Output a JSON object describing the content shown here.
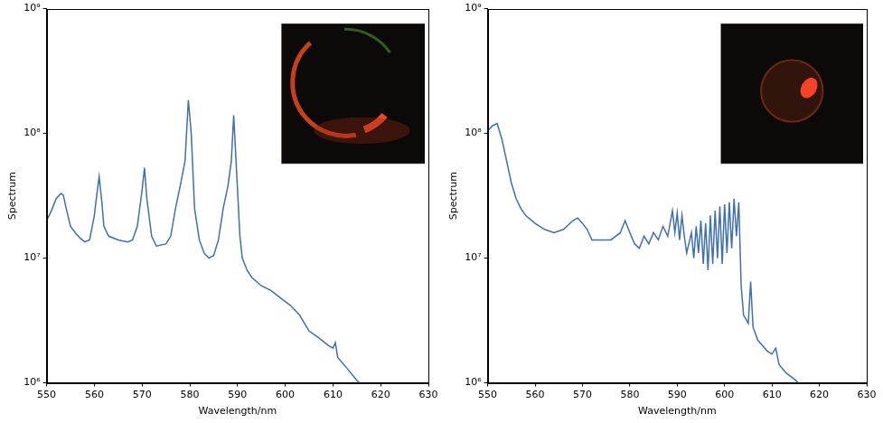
{
  "chart_data": [
    {
      "type": "line",
      "x_label": "Wavelength/nm",
      "y_label": "Spectrum",
      "color": "#3f6fad",
      "log": "y",
      "grid": false,
      "xlim": [
        550,
        630
      ],
      "xticks": [
        550,
        560,
        570,
        580,
        590,
        600,
        610,
        620,
        630
      ],
      "ylim": [
        1000000,
        1000000000
      ],
      "yticks": [
        {
          "value": 1000000,
          "label": "10⁶"
        },
        {
          "value": 10000000,
          "label": "10⁷"
        },
        {
          "value": 100000000,
          "label": "10⁸"
        },
        {
          "value": 1000000000,
          "label": "10⁹"
        }
      ],
      "x": [
        550,
        551,
        552,
        553,
        553.5,
        554,
        555,
        556,
        557,
        558,
        559,
        560,
        560.5,
        561,
        561.5,
        562,
        563,
        565,
        567,
        568,
        569,
        570,
        570.5,
        571,
        572,
        573,
        575,
        576,
        577,
        578,
        579,
        579.7,
        580.3,
        581,
        582,
        583,
        584,
        585,
        586,
        587,
        588,
        588.7,
        589.2,
        589.8,
        590.5,
        591,
        592,
        593,
        595,
        597,
        599,
        601,
        603,
        605,
        607,
        609,
        610,
        610.5,
        611,
        613,
        615,
        615.5
      ],
      "values": [
        20000000,
        24000000,
        30000000,
        33000000,
        32000000,
        26000000,
        18000000,
        16000000,
        14500000,
        13500000,
        14000000,
        22000000,
        32000000,
        45000000,
        30000000,
        18000000,
        15000000,
        14000000,
        13500000,
        14000000,
        18000000,
        35000000,
        53000000,
        30000000,
        15000000,
        12500000,
        13000000,
        15000000,
        25000000,
        38000000,
        60000000,
        185000000,
        100000000,
        25000000,
        14000000,
        11000000,
        10000000,
        10500000,
        14000000,
        25000000,
        38000000,
        60000000,
        140000000,
        50000000,
        15000000,
        10000000,
        8000000,
        7000000,
        6000000,
        5500000,
        4800000,
        4200000,
        3500000,
        2600000,
        2300000,
        2000000,
        1900000,
        2100000,
        1600000,
        1300000,
        1050000,
        1000000
      ]
    },
    {
      "type": "line",
      "x_label": "Wavelength/nm",
      "y_label": "Spectrum",
      "color": "#3f6fad",
      "log": "y",
      "grid": false,
      "xlim": [
        550,
        630
      ],
      "xticks": [
        550,
        560,
        570,
        580,
        590,
        600,
        610,
        620,
        630
      ],
      "ylim": [
        1000000,
        1000000000
      ],
      "yticks": [
        {
          "value": 1000000,
          "label": "10⁶"
        },
        {
          "value": 10000000,
          "label": "10⁷"
        },
        {
          "value": 100000000,
          "label": "10⁸"
        },
        {
          "value": 1000000000,
          "label": "10⁹"
        }
      ],
      "x": [
        550,
        551,
        552,
        553,
        554,
        555,
        556,
        557,
        558,
        560,
        562,
        564,
        566,
        568,
        569,
        570,
        571,
        572,
        574,
        576,
        578,
        579,
        580,
        581,
        582,
        583,
        584,
        585,
        586,
        587,
        588,
        589,
        589.5,
        590,
        590.5,
        591,
        591.5,
        592,
        593,
        593.5,
        594,
        594.5,
        595,
        595.5,
        596,
        596.5,
        597,
        597.5,
        598,
        598.5,
        599,
        599.5,
        600,
        600.5,
        601,
        601.5,
        602,
        602.5,
        603,
        603.5,
        604,
        605,
        605.5,
        606,
        607,
        609,
        610,
        610.8,
        611.5,
        613,
        615,
        615.5
      ],
      "values": [
        105000000,
        115000000,
        120000000,
        90000000,
        60000000,
        40000000,
        30000000,
        25000000,
        22000000,
        19000000,
        17000000,
        16000000,
        17000000,
        20000000,
        21000000,
        19000000,
        17000000,
        14000000,
        14000000,
        14000000,
        16000000,
        20000000,
        16000000,
        13000000,
        12000000,
        15000000,
        13000000,
        16000000,
        14000000,
        18000000,
        15000000,
        24000000,
        16000000,
        23000000,
        14000000,
        22000000,
        15000000,
        11000000,
        16000000,
        10000000,
        18000000,
        11000000,
        20000000,
        9000000,
        19000000,
        8000000,
        22000000,
        9000000,
        24000000,
        10000000,
        26000000,
        9000000,
        27000000,
        11000000,
        28000000,
        12000000,
        30000000,
        15000000,
        28000000,
        6000000,
        3500000,
        3000000,
        6500000,
        2800000,
        2200000,
        1800000,
        1700000,
        1900000,
        1400000,
        1200000,
        1050000,
        1000000
      ]
    }
  ]
}
